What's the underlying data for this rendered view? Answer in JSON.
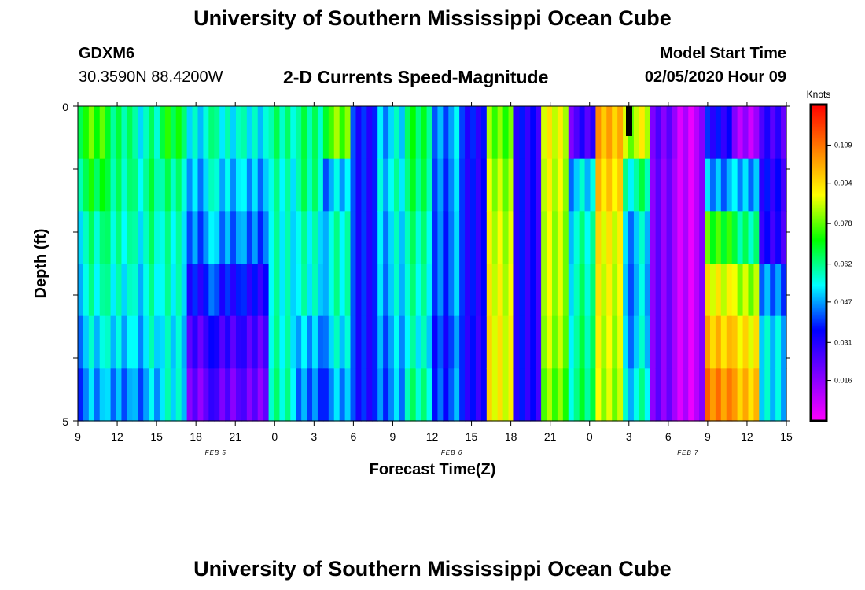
{
  "page": {
    "title_top": "University of Southern Mississippi Ocean Cube",
    "title_bottom": "University of Southern Mississippi Ocean Cube",
    "station_id": "GDXM6",
    "station_coords": "30.3590N 88.4200W",
    "plot_title": "2-D Currents Speed-Magnitude",
    "model_start_label": "Model Start Time",
    "model_start_value": "02/05/2020 Hour 09"
  },
  "chart_data": {
    "type": "heatmap",
    "title": "2-D Currents Speed-Magnitude",
    "xlabel": "Forecast Time(Z)",
    "ylabel": "Depth (ft)",
    "x_tick_labels": [
      "9",
      "12",
      "15",
      "18",
      "21",
      "0",
      "3",
      "6",
      "9",
      "12",
      "15",
      "18",
      "21",
      "0",
      "3",
      "6",
      "9",
      "12",
      "15"
    ],
    "date_labels": [
      {
        "text": "FEB 5",
        "after_tick": 3
      },
      {
        "text": "FEB 6",
        "after_tick": 9
      },
      {
        "text": "FEB 7",
        "after_tick": 15
      }
    ],
    "y_tick_labels": [
      "0",
      "5"
    ],
    "ylim": [
      0,
      5
    ],
    "colorbar": {
      "units": "Knots",
      "ticks": [
        "0.109",
        "0.094",
        "0.078",
        "0.062",
        "0.047",
        "0.031",
        "0.016"
      ],
      "range": [
        0,
        0.125
      ],
      "gradient": [
        "#ff00ff",
        "#8000ff",
        "#0000ff",
        "#00ffff",
        "#00ff00",
        "#ffff00",
        "#ff8000",
        "#ff0000"
      ]
    },
    "bands": [
      {
        "seg": 0,
        "v": [
          0.073,
          0.066,
          0.058,
          0.055,
          0.05,
          0.045
        ]
      },
      {
        "seg": 1,
        "v": [
          0.064,
          0.062,
          0.059,
          0.056,
          0.052,
          0.046
        ]
      },
      {
        "seg": 2,
        "v": [
          0.058,
          0.061,
          0.058,
          0.055,
          0.052,
          0.047
        ]
      },
      {
        "seg": 3,
        "v": [
          0.069,
          0.061,
          0.057,
          0.056,
          0.053,
          0.054
        ]
      },
      {
        "seg": 4,
        "v": [
          0.056,
          0.051,
          0.046,
          0.037,
          0.028,
          0.022
        ]
      },
      {
        "seg": 5,
        "v": [
          0.054,
          0.049,
          0.044,
          0.034,
          0.026,
          0.02
        ]
      },
      {
        "seg": 6,
        "v": [
          0.056,
          0.05,
          0.045,
          0.035,
          0.027,
          0.022
        ]
      },
      {
        "seg": 7,
        "v": [
          0.059,
          0.055,
          0.054,
          0.054,
          0.055,
          0.057
        ]
      },
      {
        "seg": 8,
        "v": [
          0.064,
          0.063,
          0.058,
          0.057,
          0.05,
          0.045
        ]
      },
      {
        "seg": 9,
        "v": [
          0.076,
          0.048,
          0.055,
          0.055,
          0.051,
          0.045
        ]
      },
      {
        "seg": 10,
        "v": [
          0.036,
          0.036,
          0.036,
          0.036,
          0.036,
          0.036
        ]
      },
      {
        "seg": 11,
        "v": [
          0.051,
          0.054,
          0.051,
          0.05,
          0.047,
          0.045
        ]
      },
      {
        "seg": 12,
        "v": [
          0.066,
          0.064,
          0.06,
          0.058,
          0.055,
          0.06
        ]
      },
      {
        "seg": 13,
        "v": [
          0.047,
          0.045,
          0.044,
          0.044,
          0.04,
          0.042
        ]
      },
      {
        "seg": 14,
        "v": [
          0.033,
          0.032,
          0.032,
          0.032,
          0.031,
          0.031
        ]
      },
      {
        "seg": 15,
        "v": [
          0.08,
          0.085,
          0.088,
          0.09,
          0.092,
          0.092
        ]
      },
      {
        "seg": 16,
        "v": [
          0.03,
          0.03,
          0.03,
          0.03,
          0.03,
          0.03
        ]
      },
      {
        "seg": 17,
        "v": [
          0.09,
          0.088,
          0.086,
          0.086,
          0.084,
          0.08
        ]
      },
      {
        "seg": 18,
        "v": [
          0.025,
          0.05,
          0.056,
          0.058,
          0.06,
          0.062
        ]
      },
      {
        "seg": 19,
        "v": [
          0.1,
          0.095,
          0.09,
          0.088,
          0.086,
          0.084
        ]
      },
      {
        "seg": 20,
        "v": [
          0.085,
          0.06,
          0.05,
          0.048,
          0.05,
          0.055
        ]
      },
      {
        "seg": 21,
        "v": [
          0.02,
          0.018,
          0.018,
          0.018,
          0.018,
          0.018
        ]
      },
      {
        "seg": 22,
        "v": [
          0.01,
          0.01,
          0.01,
          0.01,
          0.01,
          0.01
        ]
      },
      {
        "seg": 23,
        "v": [
          0.032,
          0.045,
          0.072,
          0.088,
          0.096,
          0.105
        ]
      },
      {
        "seg": 24,
        "v": [
          0.014,
          0.05,
          0.064,
          0.085,
          0.094,
          0.1
        ]
      },
      {
        "seg": 25,
        "v": [
          0.025,
          0.03,
          0.028,
          0.042,
          0.05,
          0.05
        ]
      }
    ]
  }
}
